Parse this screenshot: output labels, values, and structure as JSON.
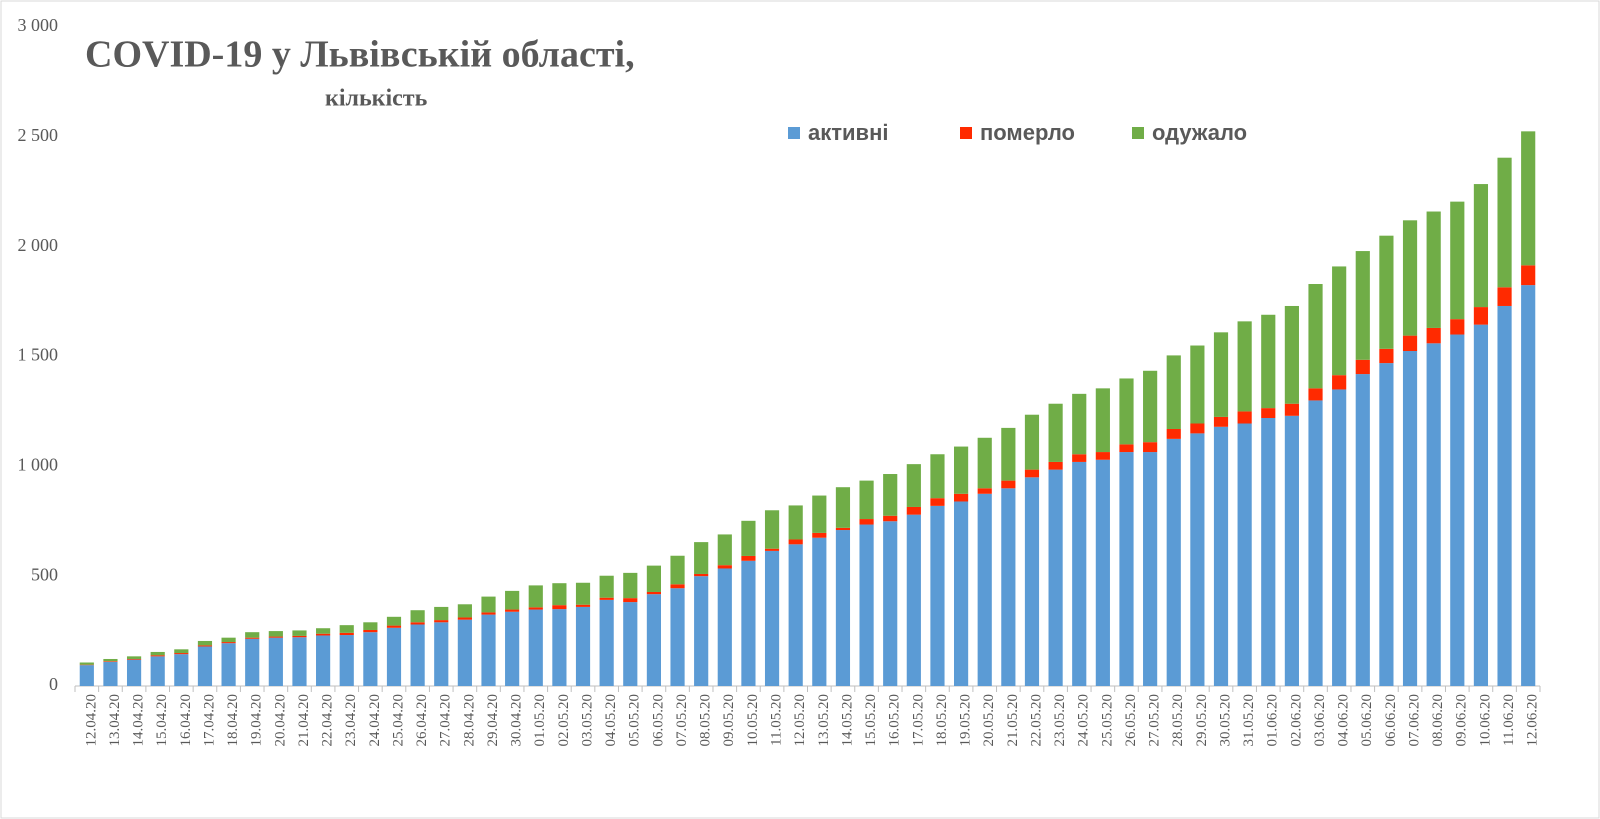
{
  "chart_data": {
    "type": "stacked_bar",
    "title": "COVID-19 у Львівській області,",
    "subtitle": "кількість",
    "categories": [
      "12.04.20",
      "13.04.20",
      "14.04.20",
      "15.04.20",
      "16.04.20",
      "17.04.20",
      "18.04.20",
      "19.04.20",
      "20.04.20",
      "21.04.20",
      "22.04.20",
      "23.04.20",
      "24.04.20",
      "25.04.20",
      "26.04.20",
      "27.04.20",
      "28.04.20",
      "29.04.20",
      "30.04.20",
      "01.05.20",
      "02.05.20",
      "03.05.20",
      "04.05.20",
      "05.05.20",
      "06.05.20",
      "07.05.20",
      "08.05.20",
      "09.05.20",
      "10.05.20",
      "11.05.20",
      "12.05.20",
      "13.05.20",
      "14.05.20",
      "15.05.20",
      "16.05.20",
      "17.05.20",
      "18.05.20",
      "19.05.20",
      "20.05.20",
      "21.05.20",
      "22.05.20",
      "23.05.20",
      "24.05.20",
      "25.05.20",
      "26.05.20",
      "27.05.20",
      "28.05.20",
      "29.05.20",
      "30.05.20",
      "31.05.20",
      "01.06.20",
      "02.06.20",
      "03.06.20",
      "04.06.20",
      "05.06.20",
      "06.06.20",
      "07.06.20",
      "08.06.20",
      "09.06.20",
      "10.06.20",
      "11.06.20",
      "12.06.20"
    ],
    "series": [
      {
        "name": "активні",
        "color": "#5b9bd5",
        "values": [
          95,
          110,
          120,
          135,
          145,
          180,
          195,
          215,
          220,
          222,
          230,
          232,
          245,
          265,
          280,
          290,
          302,
          325,
          338,
          348,
          350,
          360,
          392,
          382,
          418,
          445,
          500,
          535,
          570,
          615,
          645,
          675,
          710,
          735,
          750,
          780,
          820,
          840,
          875,
          900,
          950,
          985,
          1020,
          1030,
          1065,
          1065,
          1125,
          1150,
          1180,
          1195,
          1220,
          1230,
          1300,
          1350,
          1420,
          1470,
          1525,
          1560,
          1600,
          1645,
          1730,
          1825
        ]
      },
      {
        "name": "померло",
        "color": "#ff2a00",
        "values": [
          2,
          3,
          3,
          5,
          5,
          5,
          5,
          5,
          5,
          6,
          8,
          10,
          10,
          10,
          10,
          10,
          10,
          10,
          10,
          10,
          18,
          10,
          10,
          18,
          10,
          18,
          10,
          15,
          22,
          10,
          22,
          22,
          10,
          25,
          25,
          35,
          35,
          35,
          25,
          35,
          35,
          35,
          35,
          35,
          35,
          45,
          45,
          45,
          45,
          55,
          45,
          55,
          55,
          65,
          65,
          65,
          70,
          70,
          70,
          80,
          85,
          90
        ]
      },
      {
        "name": "одужало",
        "color": "#70ad47",
        "values": [
          10,
          10,
          12,
          15,
          17,
          20,
          20,
          25,
          25,
          25,
          25,
          35,
          35,
          40,
          55,
          60,
          60,
          72,
          85,
          100,
          100,
          100,
          100,
          115,
          120,
          130,
          145,
          140,
          160,
          175,
          155,
          170,
          185,
          175,
          190,
          195,
          200,
          215,
          230,
          240,
          250,
          265,
          275,
          290,
          300,
          325,
          335,
          355,
          385,
          410,
          425,
          445,
          475,
          495,
          495,
          515,
          525,
          530,
          535,
          560,
          590,
          610
        ]
      }
    ],
    "ylim": [
      0,
      3000
    ],
    "yticks": [
      0,
      500,
      {
        "value": 1000,
        "label": "1 000"
      },
      {
        "value": 1500,
        "label": "1 500"
      },
      {
        "value": 2000,
        "label": "2 000"
      },
      {
        "value": 2500,
        "label": "2 500"
      },
      {
        "value": 3000,
        "label": "3 000"
      }
    ]
  }
}
